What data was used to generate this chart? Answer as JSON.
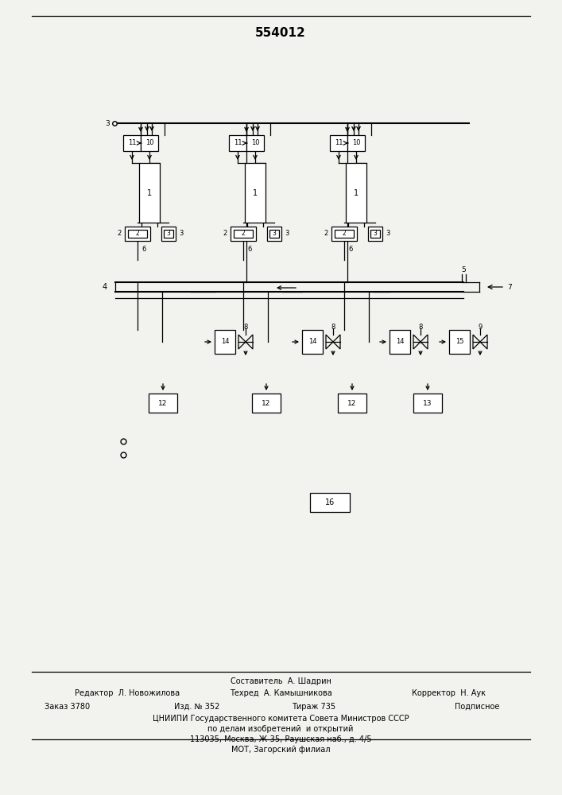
{
  "title": "554012",
  "bg_color": "#f2f2ee",
  "footer_line1": "Составитель  А. Шадрин",
  "footer_line2_left": "Редактор  Л. Новожилова",
  "footer_line2_mid": "Техред  А. Камышникова",
  "footer_line2_right": "Корректор  Н. Аук",
  "footer_line3_left": "Заказ 3780",
  "footer_line3_mid": "Изд. № 352",
  "footer_line3_mid2": "Тираж 735",
  "footer_line3_right": "Подписное",
  "footer_line4": "ЦНИИПИ Государственного комитета Совета Министров СССР",
  "footer_line5": "по делам изобретений  и открытий",
  "footer_line6": "113035, Москва, Ж-35, Раушская наб., д. 4/5",
  "footer_line7": "МОТ, Загорский филиал"
}
